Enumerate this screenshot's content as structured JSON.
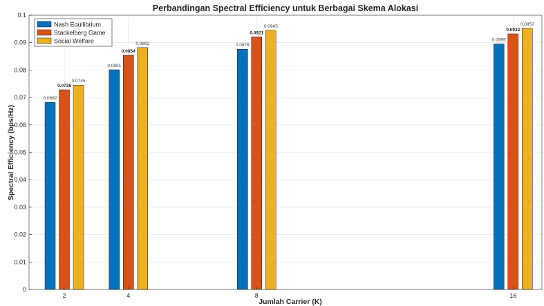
{
  "chart_data": {
    "type": "bar",
    "title": "Perbandingan Spectral Efficiency untuk Berbagai Skema Alokasi",
    "xlabel": "Jumlah Carrier (K)",
    "ylabel": "Spectral Efficiency (bps/Hz)",
    "x": [
      2,
      4,
      8,
      16
    ],
    "x_ticks": [
      "2",
      "4",
      "8",
      "16"
    ],
    "xlim": [
      0.9,
      16.9
    ],
    "ylim": [
      0,
      0.1
    ],
    "y_ticks": [
      "0",
      "0.01",
      "0.02",
      "0.03",
      "0.04",
      "0.05",
      "0.06",
      "0.07",
      "0.08",
      "0.09",
      "0.1"
    ],
    "grid": true,
    "legend_position": "top-left",
    "series": [
      {
        "name": "Nash Equilibrium",
        "color": "#0072BD",
        "values": [
          0.0682,
          0.0801,
          0.0876,
          0.0895
        ],
        "labels": [
          "0.0682",
          "0.0801",
          "0.0876",
          "0.0895"
        ],
        "label_bold": false
      },
      {
        "name": "Stackelberg Game",
        "color": "#D95319",
        "values": [
          0.0728,
          0.0854,
          0.0921,
          0.0932
        ],
        "labels": [
          "0.0728",
          "0.0854",
          "0.0921",
          "0.0932"
        ],
        "label_bold": true
      },
      {
        "name": "Social Welfare",
        "color": "#EDB120",
        "values": [
          0.0745,
          0.0882,
          0.0945,
          0.0952
        ],
        "labels": [
          "0.0745",
          "0.0882",
          "0.0945",
          "0.0952"
        ],
        "label_bold": false
      }
    ]
  }
}
